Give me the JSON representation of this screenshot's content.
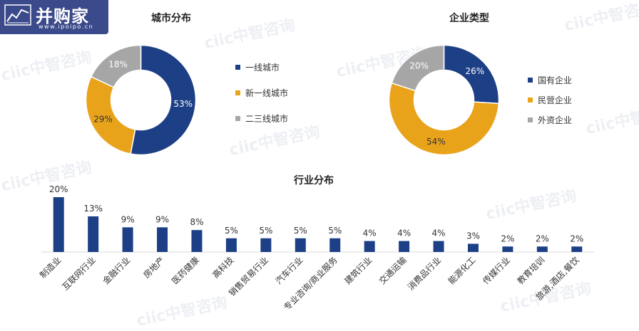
{
  "logo": {
    "text": "并购家",
    "url": "www.ipoipo.cn"
  },
  "watermark": "ciic中智咨询",
  "colors": {
    "navy": "#1d3f85",
    "orange": "#e9a31b",
    "gray": "#a6a6a6"
  },
  "chart_data": [
    {
      "type": "pie",
      "title": "城市分布",
      "labels": [
        "一线城市",
        "新一线城市",
        "二三线城市"
      ],
      "values": [
        53,
        29,
        18
      ],
      "value_labels": [
        "53%",
        "29%",
        "18%"
      ],
      "colors": [
        "#1d3f85",
        "#e9a31b",
        "#a6a6a6"
      ],
      "legend": "right"
    },
    {
      "type": "pie",
      "title": "企业类型",
      "labels": [
        "国有企业",
        "民营企业",
        "外资企业"
      ],
      "values": [
        26,
        54,
        20
      ],
      "value_labels": [
        "26%",
        "54%",
        "20%"
      ],
      "colors": [
        "#1d3f85",
        "#e9a31b",
        "#a6a6a6"
      ],
      "legend": "right"
    },
    {
      "type": "bar",
      "title": "行业分布",
      "categories": [
        "制造业",
        "互联网行业",
        "金融行业",
        "房地产",
        "医药健康",
        "高科技",
        "销售贸易行业",
        "汽车行业",
        "专业咨询/商业服务",
        "建筑行业",
        "交通运输",
        "消费品行业",
        "能源化工",
        "传媒行业",
        "教育培训",
        "旅游,酒店,餐饮"
      ],
      "values": [
        20,
        13,
        9,
        9,
        8,
        5,
        5,
        5,
        5,
        4,
        4,
        4,
        3,
        2,
        2,
        2
      ],
      "value_labels": [
        "20%",
        "13%",
        "9%",
        "9%",
        "8%",
        "5%",
        "5%",
        "5%",
        "5%",
        "4%",
        "4%",
        "4%",
        "3%",
        "2%",
        "2%",
        "2%"
      ],
      "color": "#1d3f85",
      "ylim": [
        0,
        20
      ],
      "grid": false
    }
  ]
}
